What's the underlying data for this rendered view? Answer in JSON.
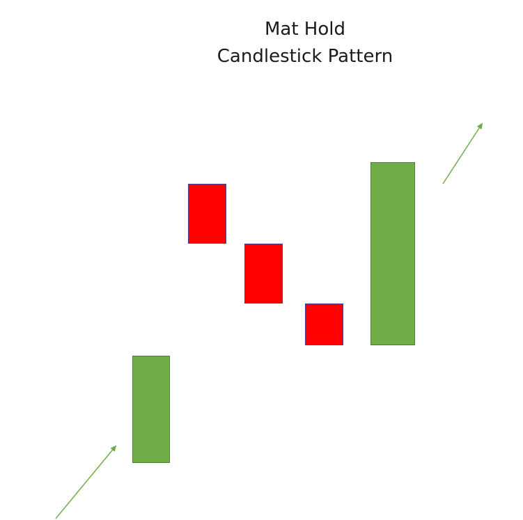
{
  "title": {
    "line1": "Mat Hold",
    "line2": "Candlestick Pattern"
  },
  "colors": {
    "bullish": "#70ad47",
    "bullish_border": "#507e32",
    "bearish": "#ff0000",
    "bearish_border": "#4d3c8a",
    "trend_arrow": "#70ad47"
  },
  "candles": [
    {
      "type": "bullish",
      "name": "candle-1-bullish"
    },
    {
      "type": "bearish",
      "name": "candle-2-bearish"
    },
    {
      "type": "bearish",
      "name": "candle-3-bearish"
    },
    {
      "type": "bearish",
      "name": "candle-4-bearish"
    },
    {
      "type": "bullish",
      "name": "candle-5-bullish"
    }
  ],
  "arrows": [
    {
      "name": "uptrend-arrow-left",
      "direction": "up-right"
    },
    {
      "name": "uptrend-arrow-right",
      "direction": "up-right"
    }
  ]
}
